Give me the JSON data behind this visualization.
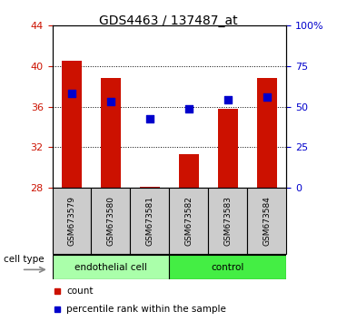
{
  "title": "GDS4463 / 137487_at",
  "samples": [
    "GSM673579",
    "GSM673580",
    "GSM673581",
    "GSM673582",
    "GSM673583",
    "GSM673584"
  ],
  "bar_values": [
    40.5,
    38.8,
    28.1,
    31.3,
    35.8,
    38.8
  ],
  "bar_bottom": 28.0,
  "percentile_values": [
    37.3,
    36.5,
    34.8,
    35.8,
    36.7,
    37.0
  ],
  "bar_color": "#cc1100",
  "dot_color": "#0000cc",
  "ylim_left": [
    28,
    44
  ],
  "yticks_left": [
    28,
    32,
    36,
    40,
    44
  ],
  "yticks_right_vals": [
    0,
    25,
    50,
    75,
    100
  ],
  "yticks_right_labels": [
    "0",
    "25",
    "50",
    "75",
    "100%"
  ],
  "left_tick_color": "#cc1100",
  "right_tick_color": "#0000cc",
  "groups": [
    {
      "label": "endothelial cell",
      "indices": [
        0,
        1,
        2
      ],
      "color": "#aaffaa"
    },
    {
      "label": "control",
      "indices": [
        3,
        4,
        5
      ],
      "color": "#44ee44"
    }
  ],
  "cell_type_label": "cell type",
  "legend_count_label": "count",
  "legend_pct_label": "percentile rank within the sample",
  "background_color": "#ffffff",
  "bar_width": 0.5,
  "dot_size": 30,
  "sample_box_color": "#cccccc",
  "sample_box_edge": "#000000"
}
